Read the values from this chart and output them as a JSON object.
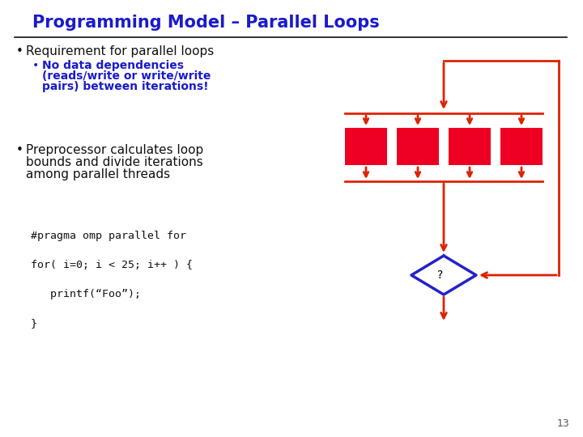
{
  "title": "Programming Model – Parallel Loops",
  "title_color": "#1a1acc",
  "title_fontsize": 15,
  "bg_color": "#ffffff",
  "bullet1": "Requirement for parallel loops",
  "bullet1_color": "#111111",
  "bullet1_fontsize": 11,
  "subbullet1_lines": [
    "No data dependencies",
    "(reads/write or write/write",
    "pairs) between iterations!"
  ],
  "subbullet1_color": "#1a1acc",
  "subbullet1_fontsize": 10,
  "bullet2_lines": [
    "Preprocessor calculates loop",
    "bounds and divide iterations",
    "among parallel threads"
  ],
  "bullet2_color": "#111111",
  "bullet2_fontsize": 11,
  "code_lines": [
    "#pragma omp parallel for",
    "",
    "for( i=0; i < 25; i++ ) {",
    "",
    "   printf(“Foo”);",
    "",
    "}"
  ],
  "code_fontsize": 9.5,
  "arrow_color": "#dd2200",
  "box_fill": "#ee0022",
  "diamond_color": "#2222cc",
  "page_number": "13",
  "line_color": "#111111",
  "lw": 2.0
}
